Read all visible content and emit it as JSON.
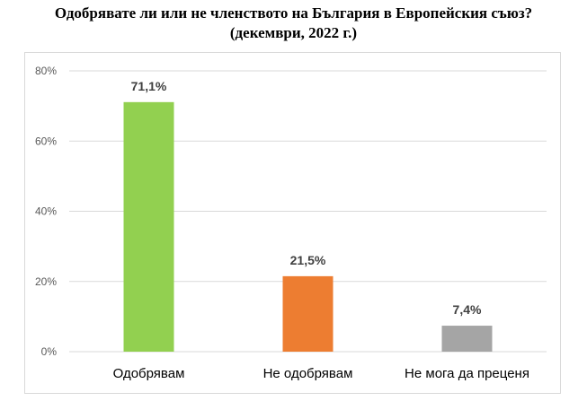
{
  "title": {
    "line1": "Одобрявате ли или не членството на България в Европейския съюз?",
    "line2": "(декември, 2022 г.)"
  },
  "chart_data": {
    "type": "bar",
    "title": "Одобрявате ли или не членството на България в Европейския съюз? (декември, 2022 г.)",
    "categories": [
      "Одобрявам",
      "Не одобрявам",
      "Не мога да преценя"
    ],
    "values": [
      71.1,
      21.5,
      7.4
    ],
    "data_labels": [
      "71,1%",
      "21,5%",
      "7,4%"
    ],
    "colors": [
      "#92d050",
      "#ed7d31",
      "#a5a5a5"
    ],
    "ylim": [
      0,
      80
    ],
    "yticks": [
      0,
      20,
      40,
      60,
      80
    ],
    "ytick_labels": [
      "0%",
      "20%",
      "40%",
      "60%",
      "80%"
    ],
    "xlabel": "",
    "ylabel": "",
    "grid": true,
    "legend": "none"
  }
}
